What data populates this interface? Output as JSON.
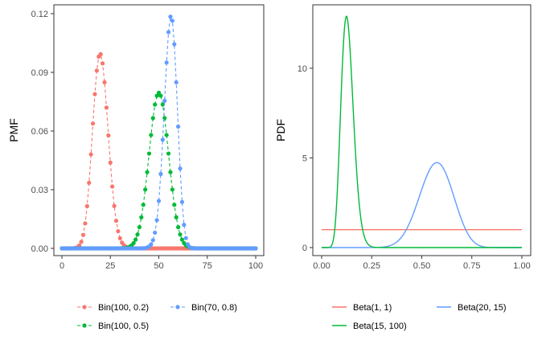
{
  "chart_data": [
    {
      "type": "line",
      "ylabel": "PMF",
      "xlim": [
        0,
        100
      ],
      "ylim": [
        0,
        0.12
      ],
      "x_ticks": [
        0,
        25,
        50,
        75,
        100
      ],
      "y_ticks": [
        0.0,
        0.03,
        0.06,
        0.09,
        0.12
      ],
      "y_tick_labels": [
        "0.00",
        "0.03",
        "0.06",
        "0.09",
        "0.12"
      ],
      "grid": false,
      "legend_position": "bottom",
      "series": [
        {
          "name": "Bin(100, 0.2)",
          "color": "#F8766D",
          "distribution": "binomial",
          "n": 100,
          "p": 0.2,
          "style": "dashed line with points",
          "x_range": [
            0,
            100
          ]
        },
        {
          "name": "Bin(70, 0.8)",
          "color": "#619CFF",
          "distribution": "binomial",
          "n": 70,
          "p": 0.8,
          "style": "dashed line with points",
          "x_range": [
            0,
            100
          ]
        },
        {
          "name": "Bin(100, 0.5)",
          "color": "#00BA38",
          "distribution": "binomial",
          "n": 100,
          "p": 0.5,
          "style": "dashed line with points",
          "x_range": [
            0,
            100
          ]
        }
      ]
    },
    {
      "type": "line",
      "ylabel": "PDF",
      "xlim": [
        0,
        1
      ],
      "ylim": [
        0,
        13
      ],
      "x_ticks": [
        0,
        0.25,
        0.5,
        0.75,
        1.0
      ],
      "x_tick_labels": [
        "0.00",
        "0.25",
        "0.50",
        "0.75",
        "1.00"
      ],
      "y_ticks": [
        0,
        5,
        10
      ],
      "y_tick_labels": [
        "0",
        "5",
        "10"
      ],
      "grid": false,
      "legend_position": "bottom",
      "series": [
        {
          "name": "Beta(1, 1)",
          "color": "#F8766D",
          "distribution": "beta",
          "a": 1,
          "b": 1
        },
        {
          "name": "Beta(20, 15)",
          "color": "#619CFF",
          "distribution": "beta",
          "a": 20,
          "b": 15
        },
        {
          "name": "Beta(15, 100)",
          "color": "#00BA38",
          "distribution": "beta",
          "a": 15,
          "b": 100
        }
      ]
    }
  ]
}
